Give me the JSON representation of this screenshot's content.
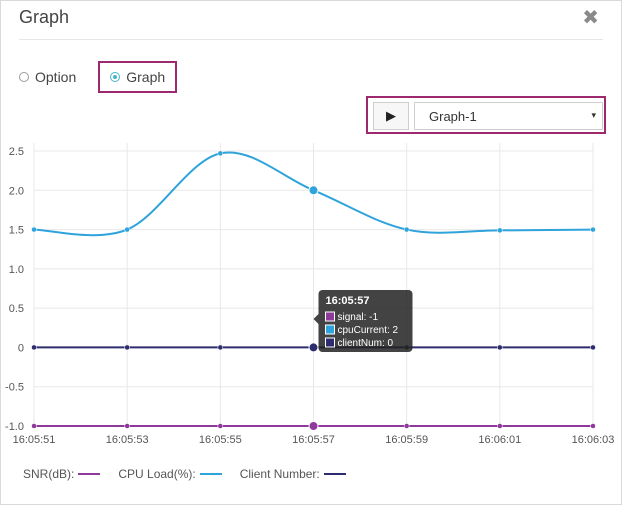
{
  "dialog": {
    "title": "Graph",
    "close_symbol": "✖"
  },
  "mode_radios": [
    {
      "label": "Option",
      "checked": false
    },
    {
      "label": "Graph",
      "checked": true
    }
  ],
  "controls": {
    "play_symbol": "▶",
    "selected_graph": "Graph-1",
    "caret_symbol": "▾"
  },
  "colors": {
    "signal": "#8e3a9a",
    "cpuCurrent": "#2ea3dc",
    "clientNum": "#2c2c6e",
    "highlight": "#9d2a6e"
  },
  "chart_data": {
    "type": "line",
    "x": [
      "16:05:51",
      "16:05:53",
      "16:05:55",
      "16:05:57",
      "16:05:59",
      "16:06:01",
      "16:06:03"
    ],
    "y_ticks": [
      "2.5",
      "2.0",
      "1.5",
      "1.0",
      "0.5",
      "0",
      "-0.5",
      "-1.0"
    ],
    "ylim": [
      -1.0,
      2.5
    ],
    "grid": true,
    "series": [
      {
        "name": "signal",
        "values": [
          -1,
          -1,
          -1,
          -1,
          -1,
          -1,
          -1
        ]
      },
      {
        "name": "cpuCurrent",
        "values": [
          1.5,
          1.5,
          2.47,
          2.0,
          1.5,
          1.49,
          1.5
        ]
      },
      {
        "name": "clientNum",
        "values": [
          0,
          0,
          0,
          0,
          0,
          0,
          0
        ]
      }
    ],
    "tooltip": {
      "time": "16:05:57",
      "rows": [
        {
          "key": "signal",
          "text": "signal: -1"
        },
        {
          "key": "cpuCurrent",
          "text": "cpuCurrent: 2"
        },
        {
          "key": "clientNum",
          "text": "clientNum: 0"
        }
      ]
    },
    "legend": [
      {
        "key": "signal",
        "label": "SNR(dB):"
      },
      {
        "key": "cpuCurrent",
        "label": "CPU Load(%):"
      },
      {
        "key": "clientNum",
        "label": "Client Number:"
      }
    ]
  }
}
